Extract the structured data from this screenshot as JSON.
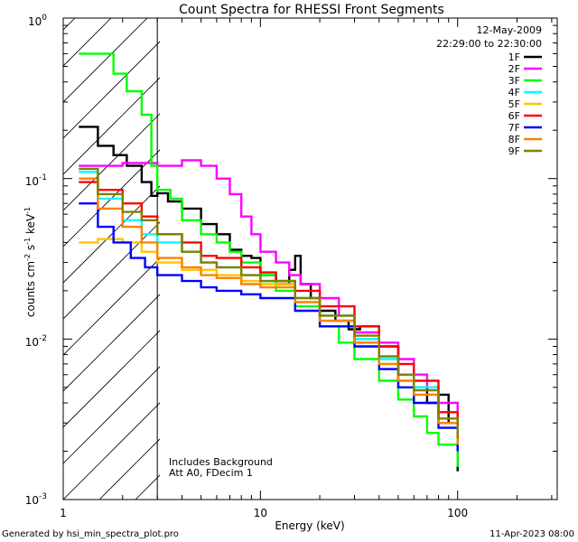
{
  "chart_data": {
    "type": "line",
    "title": "Count Spectra for RHESSI Front Segments",
    "xlabel": "Energy (keV)",
    "ylabel_parts": {
      "base": "counts cm",
      "exp1": "-2",
      "mid": " s",
      "exp2": "-1",
      "unit": " keV",
      "exp3": "-1"
    },
    "xscale": "log",
    "yscale": "log",
    "xlim": [
      1,
      320
    ],
    "ylim": [
      0.001,
      1
    ],
    "x_ticks": [
      {
        "value": 1,
        "label": "1"
      },
      {
        "value": 10,
        "label": "10"
      },
      {
        "value": 100,
        "label": "100"
      }
    ],
    "y_ticks": [
      {
        "value": 1,
        "base": "10",
        "exp": "0"
      },
      {
        "value": 0.1,
        "base": "10",
        "exp": "-1"
      },
      {
        "value": 0.01,
        "base": "10",
        "exp": "-2"
      },
      {
        "value": 0.001,
        "base": "10",
        "exp": "-3"
      }
    ],
    "date": "12-May-2009",
    "time_range": "22:29:00 to 22:30:00",
    "shaded_region_max_energy": 3,
    "notes": [
      "Includes Background",
      "Att A0, FDecim 1"
    ],
    "series": [
      {
        "name": "1F",
        "color": "#000000",
        "x": [
          1.2,
          1.5,
          1.8,
          2.1,
          2.5,
          2.8,
          3,
          3.4,
          4,
          5,
          6,
          7,
          8,
          9,
          10,
          12,
          14,
          15,
          16,
          18,
          20,
          24,
          28,
          32,
          40,
          50,
          60,
          70,
          80,
          90,
          100
        ],
        "y": [
          0.21,
          0.16,
          0.14,
          0.12,
          0.095,
          0.078,
          0.081,
          0.072,
          0.065,
          0.052,
          0.045,
          0.036,
          0.033,
          0.032,
          0.025,
          0.022,
          0.027,
          0.033,
          0.022,
          0.018,
          0.015,
          0.013,
          0.0115,
          0.012,
          0.009,
          0.006,
          0.005,
          0.004,
          0.0045,
          0.003,
          0.0015
        ]
      },
      {
        "name": "2F",
        "color": "#ff00ff",
        "x": [
          1.2,
          1.5,
          2,
          2.5,
          3,
          4,
          5,
          6,
          7,
          8,
          9,
          10,
          12,
          14,
          16,
          20,
          25,
          30,
          40,
          50,
          60,
          70,
          80,
          100
        ],
        "y": [
          0.12,
          0.12,
          0.125,
          0.125,
          0.12,
          0.13,
          0.12,
          0.1,
          0.08,
          0.058,
          0.045,
          0.035,
          0.03,
          0.025,
          0.022,
          0.018,
          0.014,
          0.011,
          0.0095,
          0.0075,
          0.006,
          0.005,
          0.004,
          0.0027
        ]
      },
      {
        "name": "3F",
        "color": "#00ff00",
        "x": [
          1.2,
          1.5,
          1.8,
          2.1,
          2.5,
          2.8,
          3,
          3.5,
          4,
          5,
          6,
          7,
          8,
          10,
          12,
          15,
          20,
          25,
          30,
          40,
          50,
          60,
          70,
          80,
          100
        ],
        "y": [
          0.6,
          0.6,
          0.45,
          0.35,
          0.25,
          0.12,
          0.085,
          0.075,
          0.055,
          0.045,
          0.04,
          0.035,
          0.03,
          0.025,
          0.02,
          0.016,
          0.012,
          0.0095,
          0.0075,
          0.0055,
          0.0042,
          0.0033,
          0.0026,
          0.0022,
          0.0016
        ]
      },
      {
        "name": "4F",
        "color": "#00ffff",
        "x": [
          1.2,
          1.5,
          2,
          2.5,
          3,
          4,
          5,
          6,
          8,
          10,
          15,
          20,
          30,
          40,
          50,
          60,
          80,
          100
        ],
        "y": [
          0.11,
          0.075,
          0.055,
          0.045,
          0.04,
          0.035,
          0.03,
          0.028,
          0.025,
          0.023,
          0.018,
          0.014,
          0.01,
          0.0075,
          0.006,
          0.005,
          0.0035,
          0.0025
        ]
      },
      {
        "name": "5F",
        "color": "#ffc400",
        "x": [
          1.2,
          1.5,
          2,
          2.5,
          3,
          4,
          6,
          8,
          10,
          15,
          20,
          30,
          40,
          50,
          60,
          80,
          100
        ],
        "y": [
          0.04,
          0.042,
          0.04,
          0.035,
          0.03,
          0.027,
          0.025,
          0.023,
          0.022,
          0.017,
          0.013,
          0.0095,
          0.007,
          0.0055,
          0.0045,
          0.003,
          0.0022
        ]
      },
      {
        "name": "6F",
        "color": "#ff0000",
        "x": [
          1.2,
          1.5,
          2,
          2.5,
          3,
          4,
          5,
          6,
          8,
          10,
          12,
          15,
          20,
          30,
          40,
          50,
          60,
          80,
          100
        ],
        "y": [
          0.095,
          0.085,
          0.07,
          0.058,
          0.045,
          0.04,
          0.033,
          0.032,
          0.028,
          0.026,
          0.023,
          0.02,
          0.016,
          0.012,
          0.009,
          0.007,
          0.0055,
          0.0035,
          0.0025
        ]
      },
      {
        "name": "7F",
        "color": "#0000ff",
        "x": [
          1.2,
          1.5,
          1.8,
          2.2,
          2.6,
          3,
          4,
          5,
          6,
          8,
          10,
          15,
          20,
          30,
          40,
          50,
          60,
          80,
          100
        ],
        "y": [
          0.07,
          0.05,
          0.04,
          0.032,
          0.028,
          0.025,
          0.023,
          0.021,
          0.02,
          0.019,
          0.018,
          0.015,
          0.012,
          0.009,
          0.0065,
          0.005,
          0.004,
          0.0028,
          0.002
        ]
      },
      {
        "name": "8F",
        "color": "#ff8000",
        "x": [
          1.2,
          1.5,
          2,
          2.5,
          3,
          4,
          5,
          6,
          8,
          10,
          15,
          20,
          30,
          40,
          50,
          60,
          80,
          100
        ],
        "y": [
          0.1,
          0.065,
          0.05,
          0.04,
          0.032,
          0.028,
          0.025,
          0.024,
          0.022,
          0.021,
          0.017,
          0.013,
          0.0095,
          0.007,
          0.0055,
          0.0045,
          0.003,
          0.0022
        ]
      },
      {
        "name": "9F",
        "color": "#808000",
        "x": [
          1.2,
          1.5,
          2,
          2.5,
          3,
          4,
          5,
          6,
          8,
          10,
          15,
          20,
          30,
          40,
          50,
          60,
          80,
          100
        ],
        "y": [
          0.115,
          0.08,
          0.062,
          0.055,
          0.045,
          0.035,
          0.03,
          0.028,
          0.025,
          0.023,
          0.018,
          0.014,
          0.0105,
          0.0078,
          0.006,
          0.0048,
          0.0032,
          0.0024
        ]
      }
    ]
  },
  "footer": {
    "generated_by": "Generated by hsi_min_spectra_plot.pro",
    "timestamp": "11-Apr-2023 08:00"
  }
}
